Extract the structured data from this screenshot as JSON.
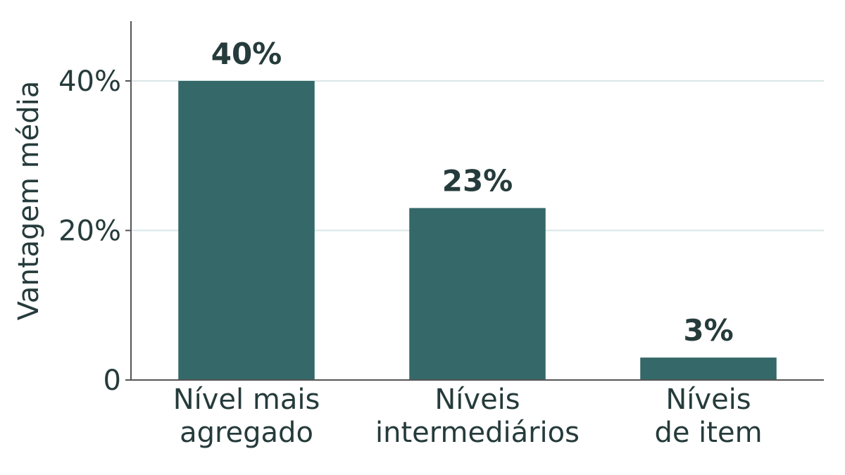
{
  "chart_data": {
    "type": "bar",
    "categories": [
      [
        "Nível mais",
        "agregado"
      ],
      [
        "Níveis",
        "intermediários"
      ],
      [
        "Níveis",
        "de item"
      ]
    ],
    "values": [
      40,
      23,
      3
    ],
    "data_labels": [
      "40%",
      "23%",
      "3%"
    ],
    "ylabel": "Vantagem média",
    "xlabel": "",
    "title": "",
    "ylim": [
      0,
      48
    ],
    "yticks": [
      {
        "value": 0,
        "label": "0"
      },
      {
        "value": 20,
        "label": "20%"
      },
      {
        "value": 40,
        "label": "40%"
      }
    ],
    "grid": "horizontal",
    "legend": "none",
    "colors": {
      "bar": "#356868",
      "text": "#263b3b",
      "grid": "#d9e6e6",
      "axis": "#555555"
    }
  }
}
